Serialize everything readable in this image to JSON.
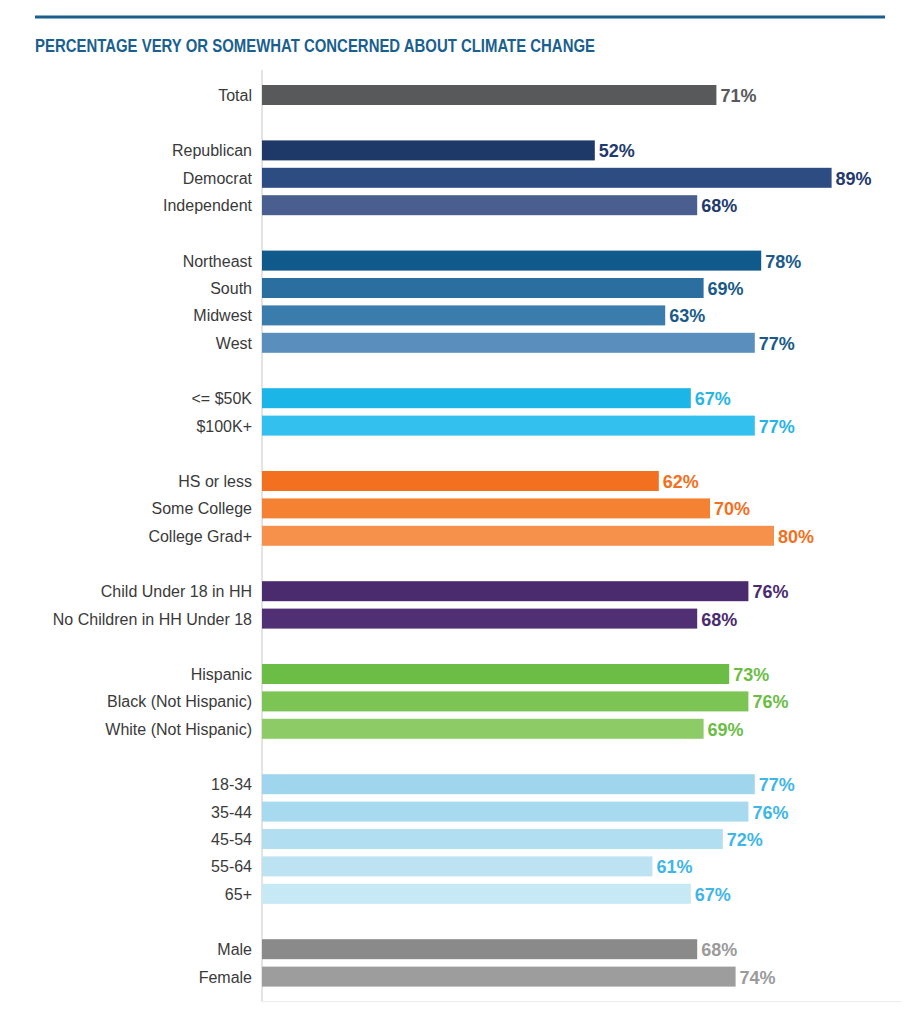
{
  "chart_data": {
    "type": "bar",
    "title": "PERCENTAGE VERY OR SOMEWHAT CONCERNED ABOUT CLIMATE CHANGE",
    "orientation": "horizontal",
    "categories": [
      "Total",
      "Republican",
      "Democrat",
      "Independent",
      "Northeast",
      "South",
      "Midwest",
      "West",
      "<= $50K",
      "$100K+",
      "HS or less",
      "Some College",
      "College Grad+",
      "Child Under 18 in HH",
      "No Children in HH Under 18",
      "Hispanic",
      "Black (Not Hispanic)",
      "White (Not Hispanic)",
      "18-34",
      "35-44",
      "45-54",
      "55-64",
      "65+",
      "Male",
      "Female"
    ],
    "values": [
      71,
      52,
      89,
      68,
      78,
      69,
      63,
      77,
      67,
      77,
      62,
      70,
      80,
      76,
      68,
      73,
      76,
      69,
      77,
      76,
      72,
      61,
      67,
      68,
      74
    ],
    "value_labels": [
      "71%",
      "52%",
      "89%",
      "68%",
      "78%",
      "69%",
      "63%",
      "77%",
      "67%",
      "77%",
      "62%",
      "70%",
      "80%",
      "76%",
      "68%",
      "73%",
      "76%",
      "69%",
      "77%",
      "76%",
      "72%",
      "61%",
      "67%",
      "68%",
      "74%"
    ],
    "colors": [
      "#58595b",
      "#1e3868",
      "#2c4c82",
      "#4a5f8f",
      "#0f5a8a",
      "#2a6fa0",
      "#3a7cac",
      "#5a8fbd",
      "#1cb5e8",
      "#33c0ee",
      "#f37021",
      "#f58233",
      "#f6914c",
      "#4a2c6e",
      "#512f75",
      "#6cbd45",
      "#7cc453",
      "#8ccb66",
      "#9fd6ee",
      "#a8daef",
      "#b2def1",
      "#bde3f3",
      "#c7e8f5",
      "#8a8a8a",
      "#9d9d9d"
    ],
    "xlim": [
      0,
      100
    ],
    "data_labels": true,
    "tick_labels": "y",
    "grid": false
  }
}
